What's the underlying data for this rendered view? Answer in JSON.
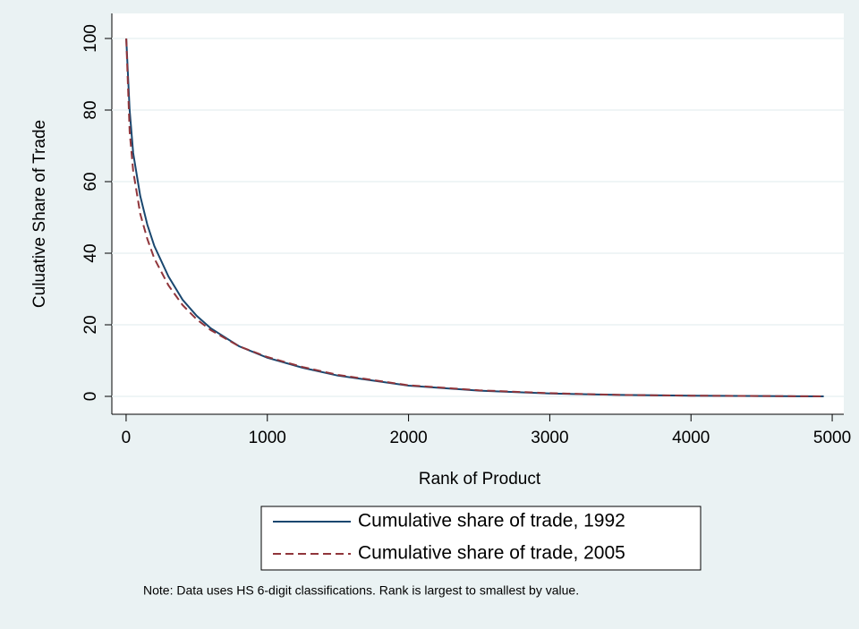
{
  "chart_data": {
    "type": "line",
    "x_label": "Rank of Product",
    "y_label": "Culuative Share of Trade",
    "note": "Note:  Data uses HS 6-digit classifications.  Rank is largest to smallest by value.",
    "x": [
      1,
      25,
      50,
      100,
      150,
      200,
      300,
      400,
      500,
      600,
      800,
      1000,
      1250,
      1500,
      2000,
      2500,
      3000,
      3500,
      4000,
      4500,
      4940
    ],
    "series": [
      {
        "name": "Cumulative share of trade, 1992",
        "color": "#1a476f",
        "dash": false,
        "values": [
          100,
          80,
          68,
          56,
          48,
          42,
          33.5,
          27,
          22.5,
          19,
          14,
          10.8,
          8,
          5.8,
          3,
          1.6,
          0.8,
          0.4,
          0.2,
          0.1,
          0
        ]
      },
      {
        "name": "Cumulative share of trade, 2005",
        "color": "#90353b",
        "dash": true,
        "values": [
          100,
          74,
          63,
          51,
          44,
          38.5,
          31,
          25.5,
          21.5,
          18.5,
          14,
          11,
          8.2,
          6,
          3.1,
          1.7,
          0.9,
          0.4,
          0.2,
          0.1,
          0
        ]
      }
    ],
    "xlim": [
      -101,
      5082
    ],
    "ylim": [
      -5,
      107
    ],
    "xticks": [
      0,
      1000,
      2000,
      3000,
      4000,
      5000
    ],
    "yticks": [
      0,
      20,
      40,
      60,
      80,
      100
    ],
    "grid": true
  }
}
